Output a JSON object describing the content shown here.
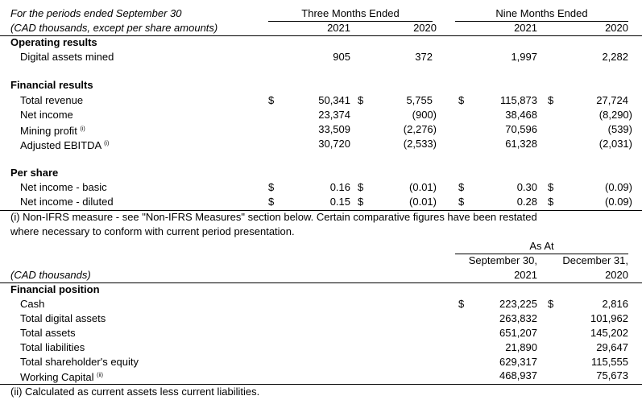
{
  "top": {
    "header_line1": "For the periods ended September 30",
    "header_line2": "(CAD thousands, except per share amounts)",
    "group1": "Three Months Ended",
    "group2": "Nine Months Ended",
    "years": [
      "2021",
      "2020",
      "2021",
      "2020"
    ],
    "currency": "$"
  },
  "operating": {
    "title": "Operating results",
    "rows": [
      {
        "label": "Digital assets mined",
        "note": "",
        "v": [
          "905",
          "372",
          "1,997",
          "2,282"
        ]
      }
    ]
  },
  "financial": {
    "title": "Financial results",
    "rows": [
      {
        "label": "Total revenue",
        "note": "",
        "v": [
          "50,341",
          "5,755",
          "115,873",
          "27,724"
        ]
      },
      {
        "label": "Net income",
        "note": "",
        "v": [
          "23,374",
          "(900)",
          "38,468",
          "(8,290)"
        ]
      },
      {
        "label": "Mining profit",
        "note": "(i)",
        "v": [
          "33,509",
          "(2,276)",
          "70,596",
          "(539)"
        ]
      },
      {
        "label": "Adjusted EBITDA",
        "note": "(i)",
        "v": [
          "30,720",
          "(2,533)",
          "61,328",
          "(2,031)"
        ]
      }
    ]
  },
  "per_share": {
    "title": "Per share",
    "rows": [
      {
        "label": "Net income - basic",
        "v": [
          "0.16",
          "(0.01)",
          "0.30",
          "(0.09)"
        ]
      },
      {
        "label": "Net income - diluted",
        "v": [
          "0.15",
          "(0.01)",
          "0.28",
          "(0.09)"
        ]
      }
    ]
  },
  "footnote1_line1": "(i) Non-IFRS measure - see \"Non-IFRS Measures\" section below. Certain comparative figures have been restated",
  "footnote1_line2": "where necessary to conform with current period presentation.",
  "position": {
    "as_at": "As At",
    "units": "(CAD thousands)",
    "col1_line1": "September 30,",
    "col1_line2": "2021",
    "col2_line1": "December 31,",
    "col2_line2": "2020",
    "title": "Financial position",
    "rows": [
      {
        "label": "Cash",
        "note": "",
        "v": [
          "223,225",
          "2,816"
        ]
      },
      {
        "label": "Total digital assets",
        "note": "",
        "v": [
          "263,832",
          "101,962"
        ]
      },
      {
        "label": "Total assets",
        "note": "",
        "v": [
          "651,207",
          "145,202"
        ]
      },
      {
        "label": "Total liabilities",
        "note": "",
        "v": [
          "21,890",
          "29,647"
        ]
      },
      {
        "label": "Total shareholder's equity",
        "note": "",
        "v": [
          "629,317",
          "115,555"
        ]
      },
      {
        "label": "Working Capital",
        "note": "(ii)",
        "v": [
          "468,937",
          "75,673"
        ]
      }
    ]
  },
  "footnote2": "(ii) Calculated as current assets less current liabilities."
}
